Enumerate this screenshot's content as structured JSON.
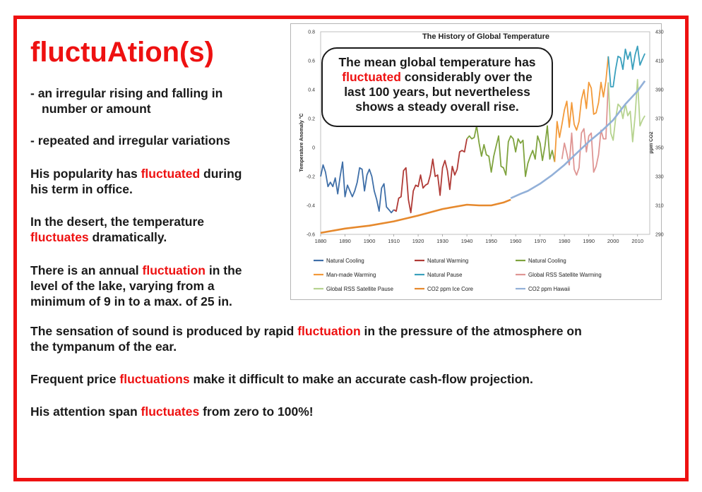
{
  "title": "fluctuAtion(s)",
  "definitions": [
    {
      "line1": "- an irregular rising and falling in",
      "line2": "number or amount"
    },
    {
      "line1": "- repeated and irregular variations"
    }
  ],
  "examples": [
    {
      "before": "His popularity has ",
      "word": "fluctuated",
      "after": " during",
      "line2": "his term in office."
    },
    {
      "line1": "In the desert, the temperature",
      "word": "fluctuates",
      "after": " dramatically."
    },
    {
      "before": "There is an annual ",
      "word": "fluctuation",
      "after": " in the",
      "line2": "level of the lake, varying from a",
      "line3": "minimum of 9 in to a max. of 25 in."
    },
    {
      "before": "The sensation of sound is produced by rapid ",
      "word": "fluctuation",
      "after": " in the pressure of the atmosphere on",
      "line2": "the tympanum of the ear."
    },
    {
      "before": "Frequent price ",
      "word": "fluctuations",
      "after": " make it difficult to make an accurate cash-flow projection."
    },
    {
      "before": "His attention span ",
      "word": "fluctuates",
      "after": " from zero to 100%!"
    }
  ],
  "callout": {
    "line1": "The mean global temperature has",
    "word": "fluctuated",
    "line2_after": " considerably over the",
    "line3": "last 100 years, but nevertheless",
    "line4": "shows a steady overall rise."
  },
  "colors": {
    "accent": "#ee1111",
    "natural_cooling": "#3f6fa8",
    "natural_warming": "#b03a36",
    "natural_cooling_2": "#7fa33e",
    "man_made_warming": "#f39a3a",
    "natural_pause": "#3aa0bd",
    "rss_warming": "#df9694",
    "rss_pause": "#b6d38f",
    "co2_ice_core": "#e6892d",
    "co2_hawaii": "#92b0d8"
  },
  "chart_data": {
    "type": "line",
    "title": "The History of Global Temperature",
    "ylabel": "Temperature Anomaly °C",
    "y2label": "ppm CO2",
    "xlim": [
      1880,
      2015
    ],
    "ylim": [
      -0.6,
      0.8
    ],
    "y2lim": [
      290,
      430
    ],
    "x_ticks": [
      1880,
      1890,
      1900,
      1910,
      1920,
      1930,
      1940,
      1950,
      1960,
      1970,
      1980,
      1990,
      2000,
      2010
    ],
    "y_ticks": [
      "0.8",
      "0.6",
      "0.4",
      "0.2",
      "0",
      "-0.2",
      "-0.4",
      "-0.6"
    ],
    "y2_ticks": [
      "430",
      "410",
      "390",
      "370",
      "350",
      "330",
      "310",
      "290"
    ],
    "legend_position": "bottom",
    "series": [
      {
        "name": "Natural Cooling",
        "axis": "left",
        "color": "#3f6fa8",
        "x": [
          1880,
          1881,
          1882,
          1883,
          1884,
          1885,
          1886,
          1887,
          1888,
          1889,
          1890,
          1891,
          1892,
          1893,
          1894,
          1895,
          1896,
          1897,
          1898,
          1899,
          1900,
          1901,
          1902,
          1903,
          1904,
          1905,
          1906,
          1907,
          1908,
          1909,
          1910
        ],
        "y": [
          -0.2,
          -0.12,
          -0.17,
          -0.27,
          -0.24,
          -0.27,
          -0.21,
          -0.32,
          -0.2,
          -0.1,
          -0.34,
          -0.26,
          -0.3,
          -0.34,
          -0.3,
          -0.24,
          -0.14,
          -0.15,
          -0.3,
          -0.19,
          -0.15,
          -0.2,
          -0.3,
          -0.36,
          -0.44,
          -0.28,
          -0.25,
          -0.41,
          -0.43,
          -0.45,
          -0.43
        ]
      },
      {
        "name": "Natural Warming",
        "axis": "left",
        "color": "#b03a36",
        "x": [
          1910,
          1911,
          1912,
          1913,
          1914,
          1915,
          1916,
          1917,
          1918,
          1919,
          1920,
          1921,
          1922,
          1923,
          1924,
          1925,
          1926,
          1927,
          1928,
          1929,
          1930,
          1931,
          1932,
          1933,
          1934,
          1935,
          1936,
          1937,
          1938,
          1939,
          1940
        ],
        "y": [
          -0.43,
          -0.44,
          -0.35,
          -0.34,
          -0.16,
          -0.14,
          -0.36,
          -0.45,
          -0.3,
          -0.26,
          -0.27,
          -0.19,
          -0.28,
          -0.26,
          -0.25,
          -0.19,
          -0.08,
          -0.2,
          -0.19,
          -0.33,
          -0.14,
          -0.09,
          -0.16,
          -0.29,
          -0.13,
          -0.19,
          -0.15,
          -0.03,
          -0.02,
          -0.03,
          0.06
        ]
      },
      {
        "name": "Natural Cooling",
        "axis": "left",
        "color": "#7fa33e",
        "x": [
          1940,
          1941,
          1942,
          1943,
          1944,
          1945,
          1946,
          1947,
          1948,
          1949,
          1950,
          1951,
          1952,
          1953,
          1954,
          1955,
          1956,
          1957,
          1958,
          1959,
          1960,
          1961,
          1962,
          1963,
          1964,
          1965,
          1966,
          1967,
          1968,
          1969,
          1970,
          1971,
          1972,
          1973,
          1974,
          1975,
          1976
        ],
        "y": [
          0.06,
          0.08,
          0.06,
          0.07,
          0.15,
          0.03,
          -0.06,
          0.02,
          -0.05,
          -0.06,
          -0.17,
          -0.06,
          0.01,
          0.08,
          -0.13,
          -0.14,
          -0.19,
          0.04,
          0.08,
          0.06,
          -0.03,
          0.06,
          0.03,
          0.05,
          -0.2,
          -0.11,
          -0.06,
          -0.02,
          -0.08,
          0.08,
          0.03,
          -0.09,
          0.01,
          0.15,
          -0.08,
          -0.02,
          -0.1
        ]
      },
      {
        "name": "Man-made Warming",
        "axis": "left",
        "color": "#f39a3a",
        "x": [
          1976,
          1977,
          1978,
          1979,
          1980,
          1981,
          1982,
          1983,
          1984,
          1985,
          1986,
          1987,
          1988,
          1989,
          1990,
          1991,
          1992,
          1993,
          1994,
          1995,
          1996,
          1997,
          1998
        ],
        "y": [
          -0.1,
          0.18,
          0.07,
          0.16,
          0.26,
          0.32,
          0.14,
          0.31,
          0.16,
          0.12,
          0.18,
          0.33,
          0.4,
          0.27,
          0.45,
          0.41,
          0.23,
          0.24,
          0.31,
          0.45,
          0.35,
          0.46,
          0.63
        ]
      },
      {
        "name": "Natural Pause",
        "axis": "left",
        "color": "#3aa0bd",
        "x": [
          1998,
          1999,
          2000,
          2001,
          2002,
          2003,
          2004,
          2005,
          2006,
          2007,
          2008,
          2009,
          2010,
          2011,
          2012,
          2013
        ],
        "y": [
          0.63,
          0.42,
          0.42,
          0.54,
          0.63,
          0.62,
          0.54,
          0.68,
          0.61,
          0.66,
          0.54,
          0.64,
          0.7,
          0.57,
          0.61,
          0.65
        ]
      },
      {
        "name": "Global RSS Satellite Warming",
        "axis": "left",
        "color": "#df9694",
        "x": [
          1979,
          1980,
          1981,
          1982,
          1983,
          1984,
          1985,
          1986,
          1987,
          1988,
          1989,
          1990,
          1991,
          1992,
          1993,
          1994,
          1995,
          1996,
          1997,
          1998
        ],
        "y": [
          -0.08,
          0.03,
          -0.04,
          -0.12,
          0.1,
          -0.15,
          -0.19,
          -0.14,
          0.1,
          0.13,
          -0.03,
          0.08,
          0.1,
          -0.17,
          -0.13,
          -0.05,
          0.12,
          0.06,
          0.06,
          0.45
        ]
      },
      {
        "name": "Global RSS Satellite Pause",
        "axis": "left",
        "color": "#b6d38f",
        "x": [
          1998,
          1999,
          2000,
          2001,
          2002,
          2003,
          2004,
          2005,
          2006,
          2007,
          2008,
          2009,
          2010,
          2011,
          2012,
          2013
        ],
        "y": [
          0.45,
          0.1,
          0.05,
          0.2,
          0.3,
          0.28,
          0.2,
          0.3,
          0.22,
          0.25,
          0.04,
          0.22,
          0.47,
          0.15,
          0.19,
          0.22
        ]
      },
      {
        "name": "CO2 ppm Ice Core",
        "axis": "right",
        "color": "#e6892d",
        "x": [
          1880,
          1890,
          1900,
          1910,
          1920,
          1930,
          1940,
          1945,
          1950,
          1955,
          1958
        ],
        "y": [
          291,
          294,
          296,
          299,
          303,
          307.5,
          310.5,
          310,
          310,
          312,
          314
        ]
      },
      {
        "name": "CO2 ppm Hawaii",
        "axis": "right",
        "color": "#92b0d8",
        "x": [
          1958,
          1962,
          1965,
          1970,
          1975,
          1980,
          1985,
          1990,
          1995,
          2000,
          2005,
          2010,
          2013
        ],
        "y": [
          315,
          318,
          320,
          325,
          331,
          338,
          346,
          354,
          361,
          369,
          380,
          389,
          396
        ]
      }
    ]
  }
}
